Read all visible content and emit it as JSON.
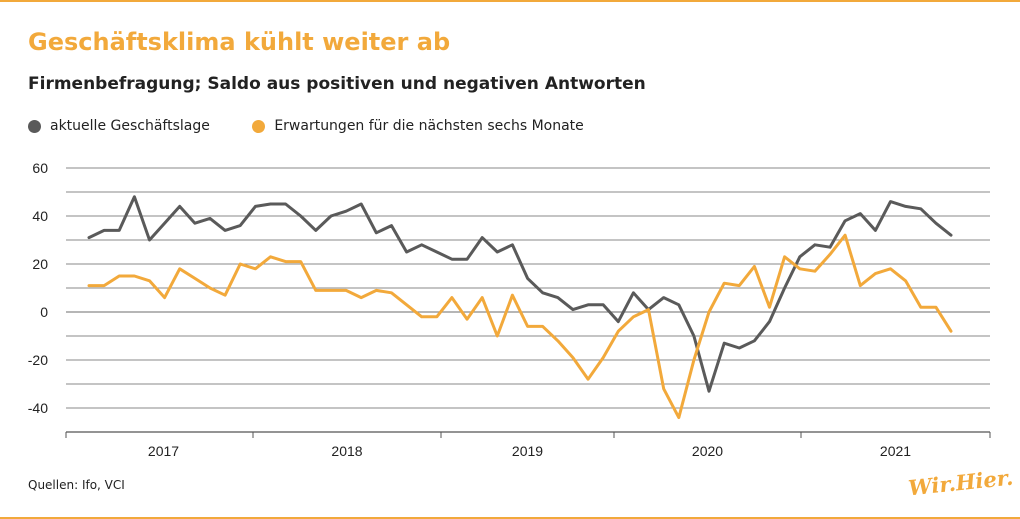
{
  "title": "Geschäftsklima kühlt weiter ab",
  "subtitle": "Firmenbefragung; Saldo aus positiven und negativen Antworten",
  "source": "Quellen: Ifo, VCI",
  "logo_text": "Wir.Hier.",
  "colors": {
    "accent": "#f2a93b",
    "series_gray": "#5a5a5a",
    "grid": "#8a8a8a"
  },
  "chart_data": {
    "type": "line",
    "title": "",
    "xlabel": "",
    "ylabel": "",
    "ylim": [
      -50,
      60
    ],
    "yticks": [
      60,
      40,
      20,
      0,
      -20,
      -40
    ],
    "xticks": [
      "2017",
      "2018",
      "2019",
      "2020",
      "2021"
    ],
    "legend_position": "top-left",
    "grid": true,
    "series": [
      {
        "name": "aktuelle Geschäftslage",
        "color": "#5a5a5a",
        "values": [
          31,
          34,
          34,
          48,
          30,
          37,
          44,
          37,
          39,
          34,
          36,
          44,
          45,
          45,
          40,
          34,
          40,
          42,
          45,
          33,
          36,
          25,
          28,
          25,
          22,
          22,
          31,
          25,
          28,
          14,
          8,
          6,
          1,
          3,
          3,
          -4,
          8,
          1,
          6,
          3,
          -10,
          -33,
          -13,
          -15,
          -12,
          -4,
          10,
          23,
          28,
          27,
          38,
          41,
          34,
          46,
          44,
          43,
          37,
          32
        ]
      },
      {
        "name": "Erwartungen für die nächsten sechs Monate",
        "color": "#f2a93b",
        "values": [
          11,
          11,
          15,
          15,
          13,
          6,
          18,
          14,
          10,
          7,
          20,
          18,
          23,
          21,
          21,
          9,
          9,
          9,
          6,
          9,
          8,
          3,
          -2,
          -2,
          6,
          -3,
          6,
          -10,
          7,
          -6,
          -6,
          -12,
          -19,
          -28,
          -19,
          -8,
          -2,
          1,
          -32,
          -44,
          -20,
          0,
          12,
          11,
          19,
          2,
          23,
          18,
          17,
          24,
          32,
          11,
          16,
          18,
          13,
          2,
          2,
          -8
        ]
      }
    ]
  }
}
